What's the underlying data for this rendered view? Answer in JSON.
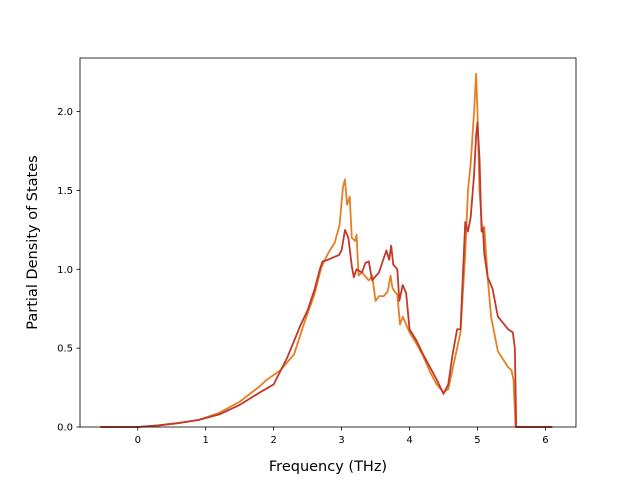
{
  "chart_data": {
    "type": "line",
    "xlabel": "Frequency (THz)",
    "ylabel": "Partial Density of States",
    "xlim": [
      -0.85,
      6.45
    ],
    "ylim": [
      0.0,
      2.34
    ],
    "xticks": [
      0,
      1,
      2,
      3,
      4,
      5,
      6
    ],
    "xtick_labels": [
      "0",
      "1",
      "2",
      "3",
      "4",
      "5",
      "6"
    ],
    "yticks": [
      0.0,
      0.5,
      1.0,
      1.5,
      2.0
    ],
    "ytick_labels": [
      "0.0",
      "0.5",
      "1.0",
      "1.5",
      "2.0"
    ],
    "grid": false,
    "legend": "none",
    "series": [
      {
        "color": "#e67e22",
        "x": [
          -0.55,
          0.0,
          0.3,
          0.6,
          0.9,
          1.2,
          1.5,
          1.8,
          1.9,
          2.1,
          2.3,
          2.45,
          2.6,
          2.7,
          2.8,
          2.9,
          2.97,
          3.02,
          3.05,
          3.08,
          3.12,
          3.15,
          3.2,
          3.22,
          3.25,
          3.3,
          3.4,
          3.45,
          3.5,
          3.55,
          3.62,
          3.68,
          3.72,
          3.75,
          3.78,
          3.82,
          3.86,
          3.9,
          3.95,
          4.0,
          4.1,
          4.2,
          4.3,
          4.4,
          4.5,
          4.57,
          4.65,
          4.75,
          4.82,
          4.86,
          4.9,
          4.95,
          4.98,
          5.0,
          5.03,
          5.07,
          5.1,
          5.15,
          5.2,
          5.3,
          5.45,
          5.5,
          5.53,
          5.56,
          5.6,
          6.1
        ],
        "y": [
          0.0,
          0.0,
          0.01,
          0.025,
          0.045,
          0.09,
          0.16,
          0.26,
          0.3,
          0.36,
          0.46,
          0.66,
          0.84,
          1.01,
          1.1,
          1.17,
          1.28,
          1.52,
          1.57,
          1.41,
          1.46,
          1.2,
          1.18,
          1.22,
          0.96,
          0.98,
          0.93,
          0.96,
          0.8,
          0.83,
          0.83,
          0.86,
          0.96,
          0.88,
          0.86,
          0.84,
          0.65,
          0.7,
          0.65,
          0.6,
          0.53,
          0.45,
          0.35,
          0.27,
          0.22,
          0.24,
          0.4,
          0.6,
          1.1,
          1.5,
          1.67,
          2.0,
          2.24,
          2.0,
          1.5,
          1.25,
          1.27,
          0.95,
          0.7,
          0.48,
          0.38,
          0.36,
          0.3,
          0.0,
          0.0,
          0.0
        ]
      },
      {
        "color": "#c0392b",
        "x": [
          -0.55,
          0.0,
          0.3,
          0.6,
          0.9,
          1.2,
          1.5,
          1.8,
          2.0,
          2.2,
          2.4,
          2.5,
          2.6,
          2.68,
          2.72,
          2.8,
          2.9,
          2.96,
          3.0,
          3.05,
          3.1,
          3.15,
          3.18,
          3.22,
          3.3,
          3.35,
          3.4,
          3.45,
          3.55,
          3.62,
          3.66,
          3.7,
          3.73,
          3.76,
          3.82,
          3.85,
          3.9,
          3.95,
          4.0,
          4.1,
          4.2,
          4.3,
          4.4,
          4.5,
          4.57,
          4.63,
          4.7,
          4.75,
          4.82,
          4.86,
          4.9,
          4.95,
          4.98,
          5.0,
          5.03,
          5.06,
          5.08,
          5.1,
          5.15,
          5.22,
          5.3,
          5.45,
          5.52,
          5.55,
          5.57,
          5.6,
          6.1
        ],
        "y": [
          0.0,
          0.0,
          0.01,
          0.025,
          0.045,
          0.08,
          0.14,
          0.22,
          0.27,
          0.44,
          0.65,
          0.74,
          0.87,
          1.0,
          1.05,
          1.06,
          1.08,
          1.09,
          1.12,
          1.25,
          1.2,
          1.02,
          0.95,
          1.0,
          0.98,
          1.04,
          1.05,
          0.93,
          0.98,
          1.07,
          1.12,
          1.06,
          1.15,
          1.03,
          1.0,
          0.8,
          0.9,
          0.85,
          0.62,
          0.55,
          0.46,
          0.38,
          0.3,
          0.21,
          0.27,
          0.45,
          0.62,
          0.62,
          1.3,
          1.24,
          1.33,
          1.6,
          1.85,
          1.93,
          1.7,
          1.24,
          1.26,
          1.1,
          0.95,
          0.88,
          0.7,
          0.62,
          0.6,
          0.5,
          0.0,
          0.0,
          0.0
        ]
      }
    ]
  }
}
